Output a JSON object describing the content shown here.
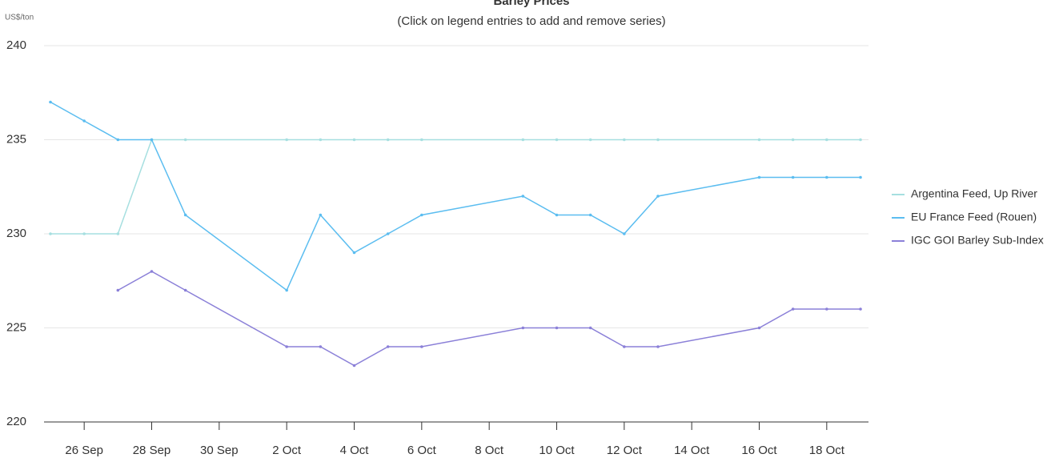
{
  "chart_data": {
    "type": "line",
    "title": "Barley Prices",
    "subtitle": "(Click on legend entries to add and remove series)",
    "y_label": "US$/ton",
    "x": [
      "25 Sep",
      "26 Sep",
      "27 Sep",
      "28 Sep",
      "29 Sep",
      "2 Oct",
      "3 Oct",
      "4 Oct",
      "5 Oct",
      "6 Oct",
      "9 Oct",
      "10 Oct",
      "11 Oct",
      "12 Oct",
      "13 Oct",
      "16 Oct",
      "17 Oct",
      "18 Oct",
      "19 Oct"
    ],
    "series": [
      {
        "name": "Argentina Feed, Up River",
        "color": "#a6dfe0",
        "values": [
          230,
          230,
          230,
          235,
          235,
          235,
          235,
          235,
          235,
          235,
          235,
          235,
          235,
          235,
          235,
          235,
          235,
          235,
          235
        ]
      },
      {
        "name": "EU France Feed (Rouen)",
        "color": "#5bbdf0",
        "values": [
          237,
          236,
          235,
          235,
          231,
          227,
          231,
          229,
          230,
          231,
          232,
          231,
          231,
          230,
          232,
          233,
          233,
          233,
          233
        ]
      },
      {
        "name": "IGC GOI Barley Sub-Index",
        "color": "#8b80d8",
        "values": [
          null,
          null,
          227,
          228,
          227,
          224,
          224,
          223,
          224,
          224,
          225,
          225,
          225,
          224,
          224,
          225,
          226,
          226,
          226
        ]
      }
    ],
    "xlim": [
      "25 Sep",
      "19 Oct"
    ],
    "xticks": [
      "26 Sep",
      "28 Sep",
      "30 Sep",
      "2 Oct",
      "4 Oct",
      "6 Oct",
      "8 Oct",
      "10 Oct",
      "12 Oct",
      "14 Oct",
      "16 Oct",
      "18 Oct"
    ],
    "ylim": [
      220,
      240
    ],
    "yticks": [
      220,
      225,
      230,
      235,
      240
    ],
    "grid": true,
    "legend": "right"
  }
}
